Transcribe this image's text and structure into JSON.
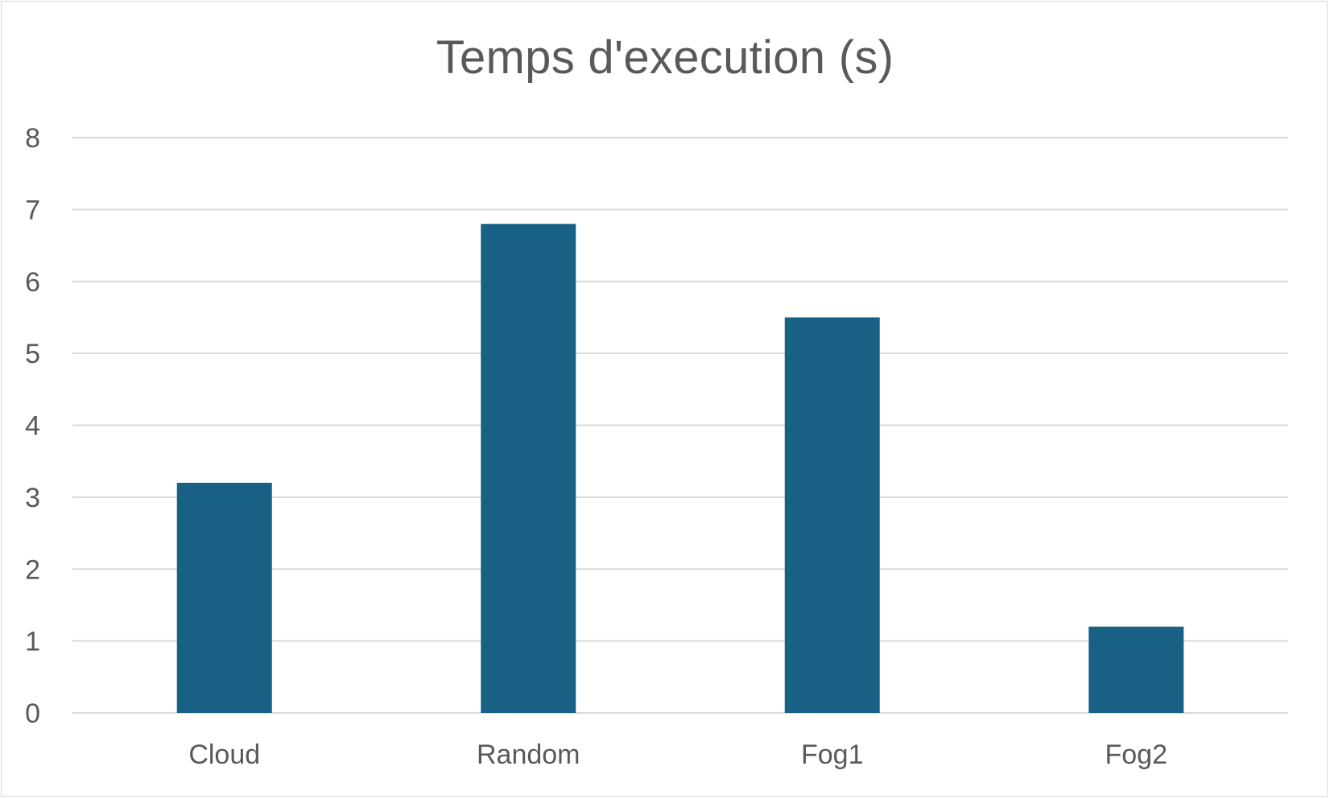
{
  "chart_data": {
    "type": "bar",
    "title": "Temps d'execution (s)",
    "categories": [
      "Cloud",
      "Random",
      "Fog1",
      "Fog2"
    ],
    "values": [
      3.2,
      6.8,
      5.5,
      1.2
    ],
    "xlabel": "",
    "ylabel": "",
    "ylim": [
      0,
      8
    ],
    "yticks": [
      "0",
      "1",
      "2",
      "3",
      "4",
      "5",
      "6",
      "7",
      "8"
    ],
    "grid": true,
    "legend": "none",
    "colors": {
      "bar": "#186185",
      "grid": "#d9d9d9",
      "text": "#595959"
    }
  }
}
